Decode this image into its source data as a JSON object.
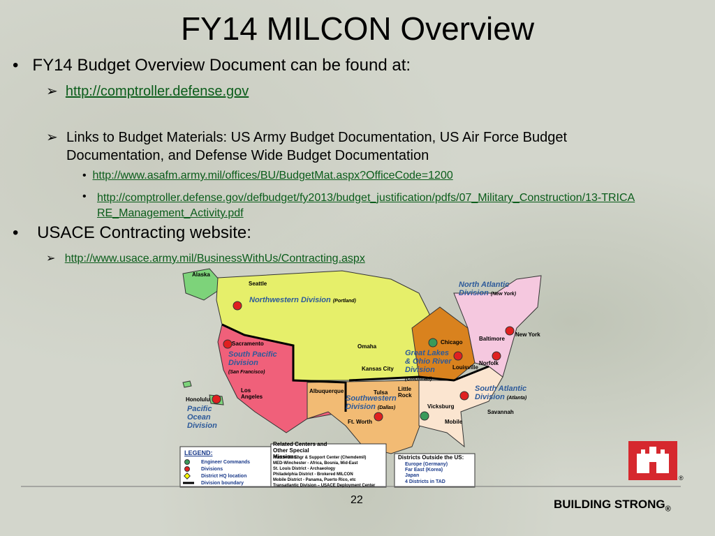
{
  "header": {
    "title": "FY14 MILCON Overview"
  },
  "bullets": [
    {
      "text": "FY14 Budget Overview Document can be found at:",
      "items": [
        {
          "link": "http://comptroller.defense.gov"
        },
        {
          "text": "Links to Budget Materials: US Army Budget Documentation, US Air Force Budget Documentation, and Defense Wide Budget Documentation",
          "links": [
            "http://www.asafm.army.mil/offices/BU/BudgetMat.aspx?OfficeCode=1200",
            "http://comptroller.defense.gov/defbudget/fy2013/budget_justification/pdfs/07_Military_Construction/13-TRICARE_Management_Activity.pdf"
          ]
        }
      ]
    },
    {
      "text": "USACE Contracting website:",
      "items": [
        {
          "link": "http://www.usace.army.mil/BusinessWithUs/Contracting.aspx"
        }
      ]
    }
  ],
  "map": {
    "divisions": [
      {
        "name": "Northwestern Division",
        "hq": "(Portland)"
      },
      {
        "name": "South Pacific Division",
        "hq": "(San Francisco)"
      },
      {
        "name": "Pacific Ocean Division"
      },
      {
        "name": "Southwestern Division",
        "hq": "(Dallas)"
      },
      {
        "name": "Great Lakes & Ohio River Division",
        "hq": "(Cincinnati)"
      },
      {
        "name": "North Atlantic Division",
        "hq": "(New York)"
      },
      {
        "name": "South Atlantic Division",
        "hq": "(Atlanta)"
      }
    ],
    "cities": [
      "Alaska",
      "Seattle",
      "Sacramento",
      "Los Angeles",
      "Honolulu",
      "Albuquerque",
      "Omaha",
      "Kansas City",
      "Tulsa",
      "Little Rock",
      "Ft. Worth",
      "Vicksburg",
      "Mobile",
      "Chicago",
      "Louisville",
      "Baltimore",
      "New York",
      "Norfolk",
      "Savannah"
    ],
    "legend": {
      "title": "LEGEND:",
      "items": [
        "Engineer Commands",
        "Divisions",
        "District HQ location",
        "Division boundary"
      ]
    },
    "related": {
      "title": "Related Centers and Other Special Missions:",
      "items": [
        "Huntsville Engr & Support Center (Chemdemil)",
        "MED-Winchester - Africa, Bosnia, Mid-East",
        "St. Louis District - Archaeology",
        "Philadelphia District - Brokered MILCON",
        "Mobile District - Panama, Puerto Rico, etc",
        "Transatlantic Division – USACE Deployment Center"
      ]
    },
    "outside": {
      "title": "Districts Outside the US:",
      "items": [
        "Europe (Germany)",
        "Far East (Korea)",
        "Japan",
        "4 Districts in TAD"
      ]
    }
  },
  "footer": {
    "page": "22",
    "brand": "BUILDING STRONG",
    "mark": "®"
  }
}
